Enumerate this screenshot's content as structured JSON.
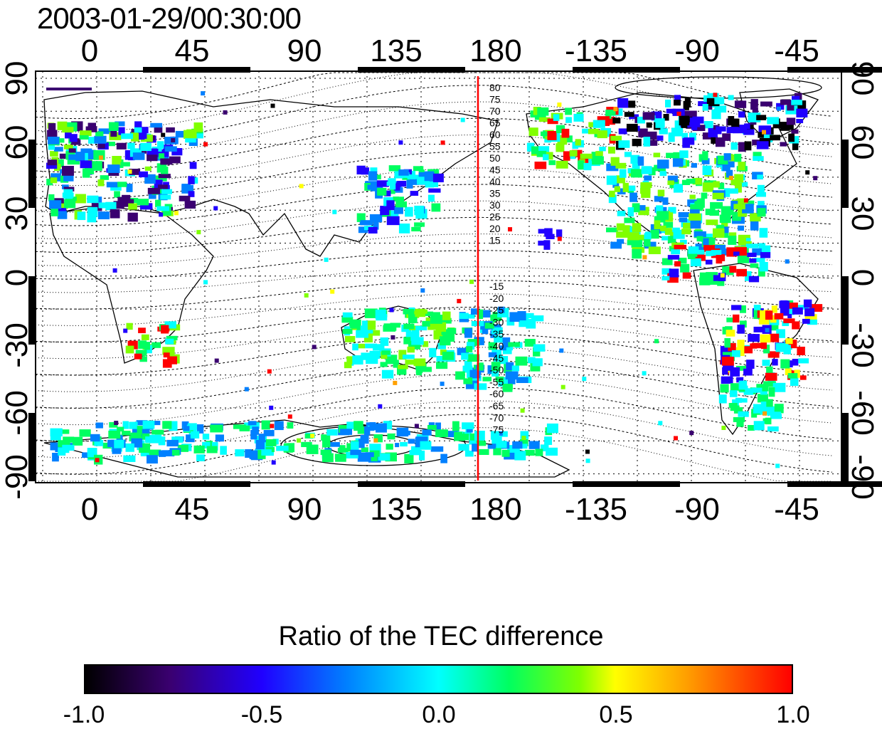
{
  "title": "2003-01-29/00:30:00",
  "longitude_ticks": [
    "0",
    "45",
    "90",
    "135",
    "180",
    "-135",
    "-90",
    "-45"
  ],
  "latitude_ticks_left": [
    "90",
    "60",
    "30",
    "0",
    "-30",
    "-60",
    "-90"
  ],
  "latitude_ticks_right": [
    "90",
    "60",
    "30",
    "0",
    "-30",
    "-60",
    "-90"
  ],
  "magnetic_latitude_labels_north": [
    "80",
    "75",
    "70",
    "65",
    "60",
    "55",
    "50",
    "45",
    "40",
    "35",
    "30",
    "25",
    "20",
    "15"
  ],
  "magnetic_latitude_labels_south": [
    "-15",
    "-20",
    "-25",
    "-30",
    "-35",
    "-40",
    "-45",
    "-50",
    "-55",
    "-60",
    "-65",
    "-70",
    "-75"
  ],
  "meridian_line_color": "#ff0000",
  "colorbar": {
    "title": "Ratio of the TEC difference",
    "labels": [
      "-1.0",
      "-0.5",
      "0.0",
      "0.5",
      "1.0"
    ],
    "min": -1.0,
    "max": 1.0,
    "colors": [
      "#000000",
      "#3a0070",
      "#2000ff",
      "#0080ff",
      "#00ffff",
      "#00ff60",
      "#80ff00",
      "#ffff00",
      "#ffa000",
      "#ff0000"
    ]
  }
}
